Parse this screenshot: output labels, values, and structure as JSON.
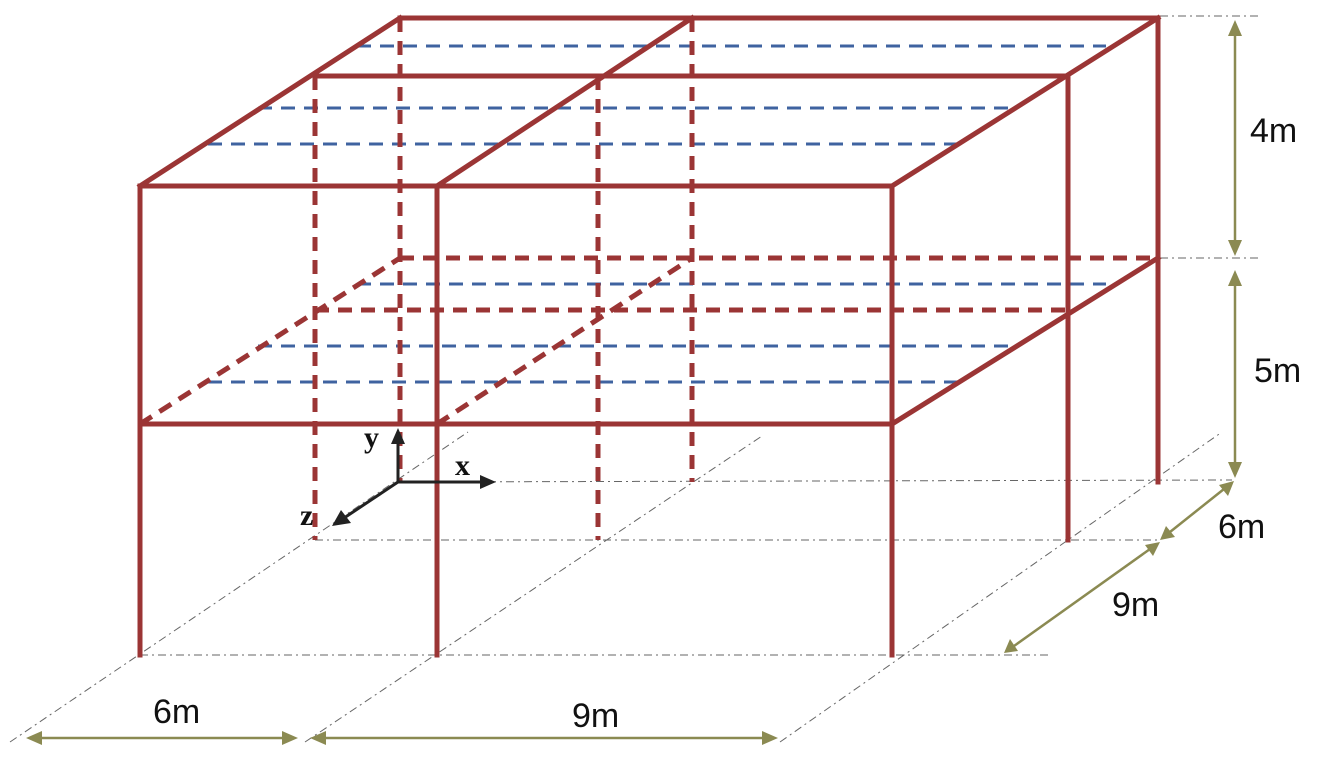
{
  "colors": {
    "frame": "#9b3535",
    "joist": "#3f63a0",
    "dimension": "#8b8a52",
    "axis": "#222222"
  },
  "axes": {
    "x": "x",
    "y": "y",
    "z": "z"
  },
  "dimensions": {
    "upper_story_height": "4m",
    "lower_story_height": "5m",
    "depth_back_bay": "6m",
    "depth_front_bay": "9m",
    "width_left_bay": "6m",
    "width_right_bay": "9m"
  }
}
